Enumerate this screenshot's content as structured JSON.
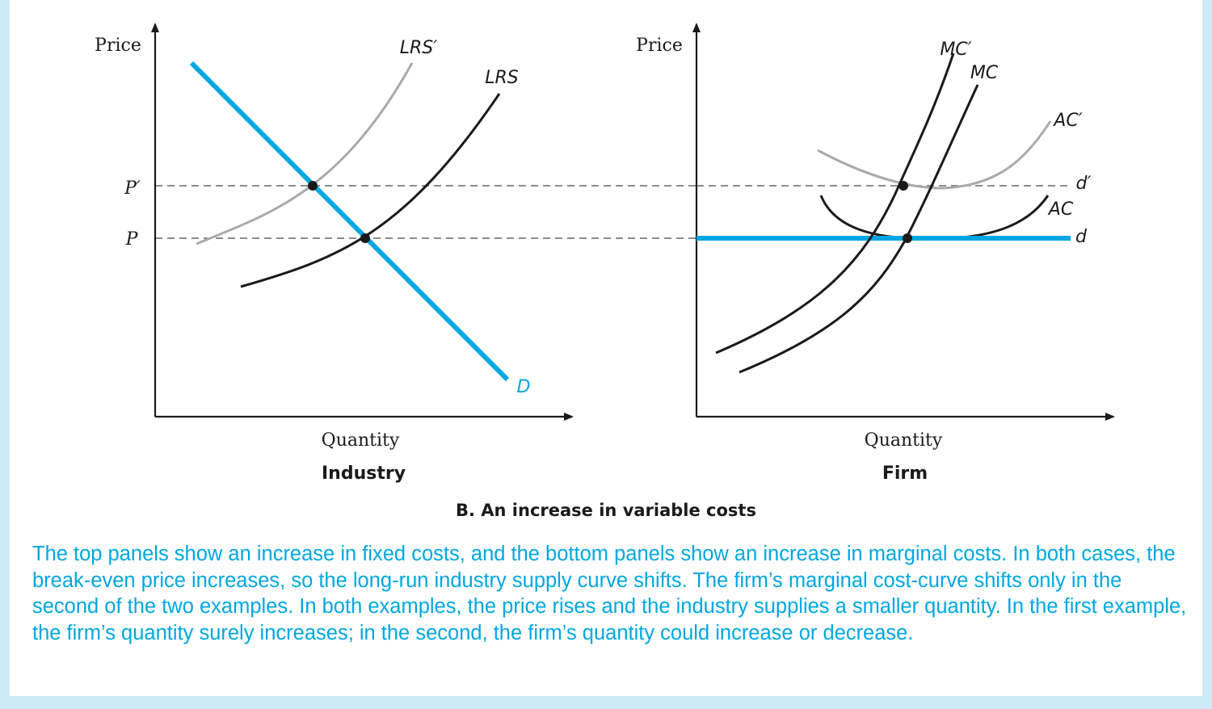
{
  "colors": {
    "background": "#cdeaf9",
    "accent_blue": "#00a7e1",
    "curve_black": "#1a1a1a",
    "curve_gray": "#aaaaaa",
    "dash_gray": "#666666"
  },
  "industry": {
    "y_axis_label": "Price",
    "x_axis_label": "Quantity",
    "panel_title": "Industry",
    "price_label_high": "P′",
    "price_label_low": "P",
    "lrs_prime_label": "LRS′",
    "lrs_label": "LRS",
    "demand_label": "D"
  },
  "firm": {
    "y_axis_label": "Price",
    "x_axis_label": "Quantity",
    "panel_title": "Firm",
    "mc_prime_label": "MC′",
    "mc_label": "MC",
    "ac_prime_label": "AC′",
    "ac_label": "AC",
    "d_prime_label": "d′",
    "d_label": "d"
  },
  "figure_title": "B. An increase in variable costs",
  "caption": "The top panels show an increase in fixed costs, and the bottom panels show an increase in marginal costs. In both cases, the break-even price increases, so the long-run industry supply curve shifts. The firm’s marginal cost-curve shifts only in the second of the two examples. In both examples, the price rises and the industry supplies a smaller quantity. In the first example, the firm’s quantity surely increases; in the second, the firm’s quantity could increase or decrease."
}
